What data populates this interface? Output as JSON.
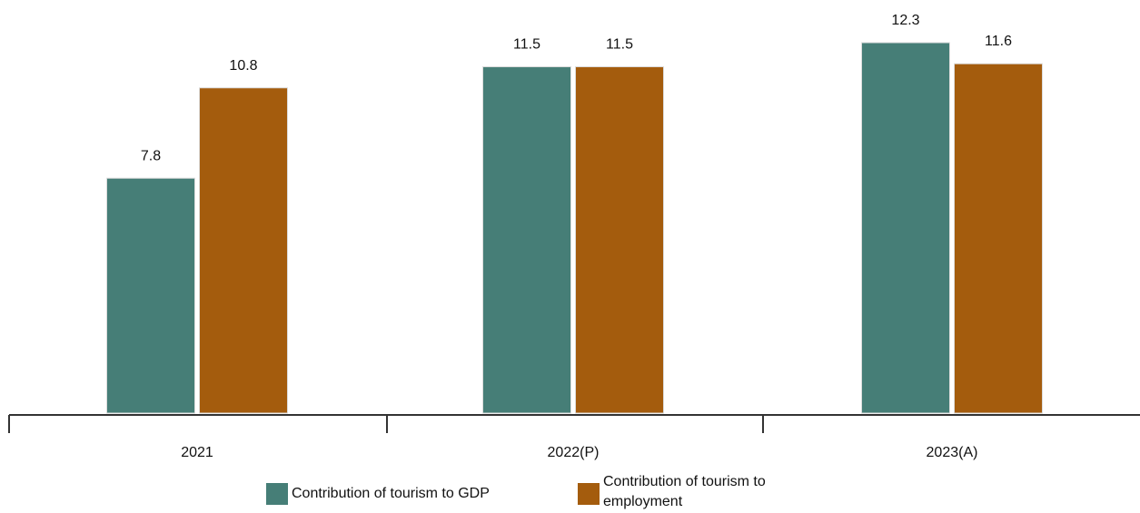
{
  "chart_data": {
    "type": "bar",
    "categories": [
      "2021",
      "2022(P)",
      "2023(A)"
    ],
    "series": [
      {
        "name": "Contribution of tourism to GDP",
        "color": "#467e77",
        "values": [
          7.8,
          11.5,
          12.3
        ]
      },
      {
        "name": "Contribution of tourism to employment",
        "color": "#a45c0d",
        "values": [
          10.8,
          11.5,
          11.6
        ]
      }
    ],
    "data_labels": [
      [
        "7.8",
        "11.5",
        "12.3"
      ],
      [
        "10.8",
        "11.5",
        "11.6"
      ]
    ],
    "title": "",
    "xlabel": "",
    "ylabel": "",
    "ylim": [
      0,
      14
    ],
    "grid": false,
    "legend_position": "bottom"
  }
}
